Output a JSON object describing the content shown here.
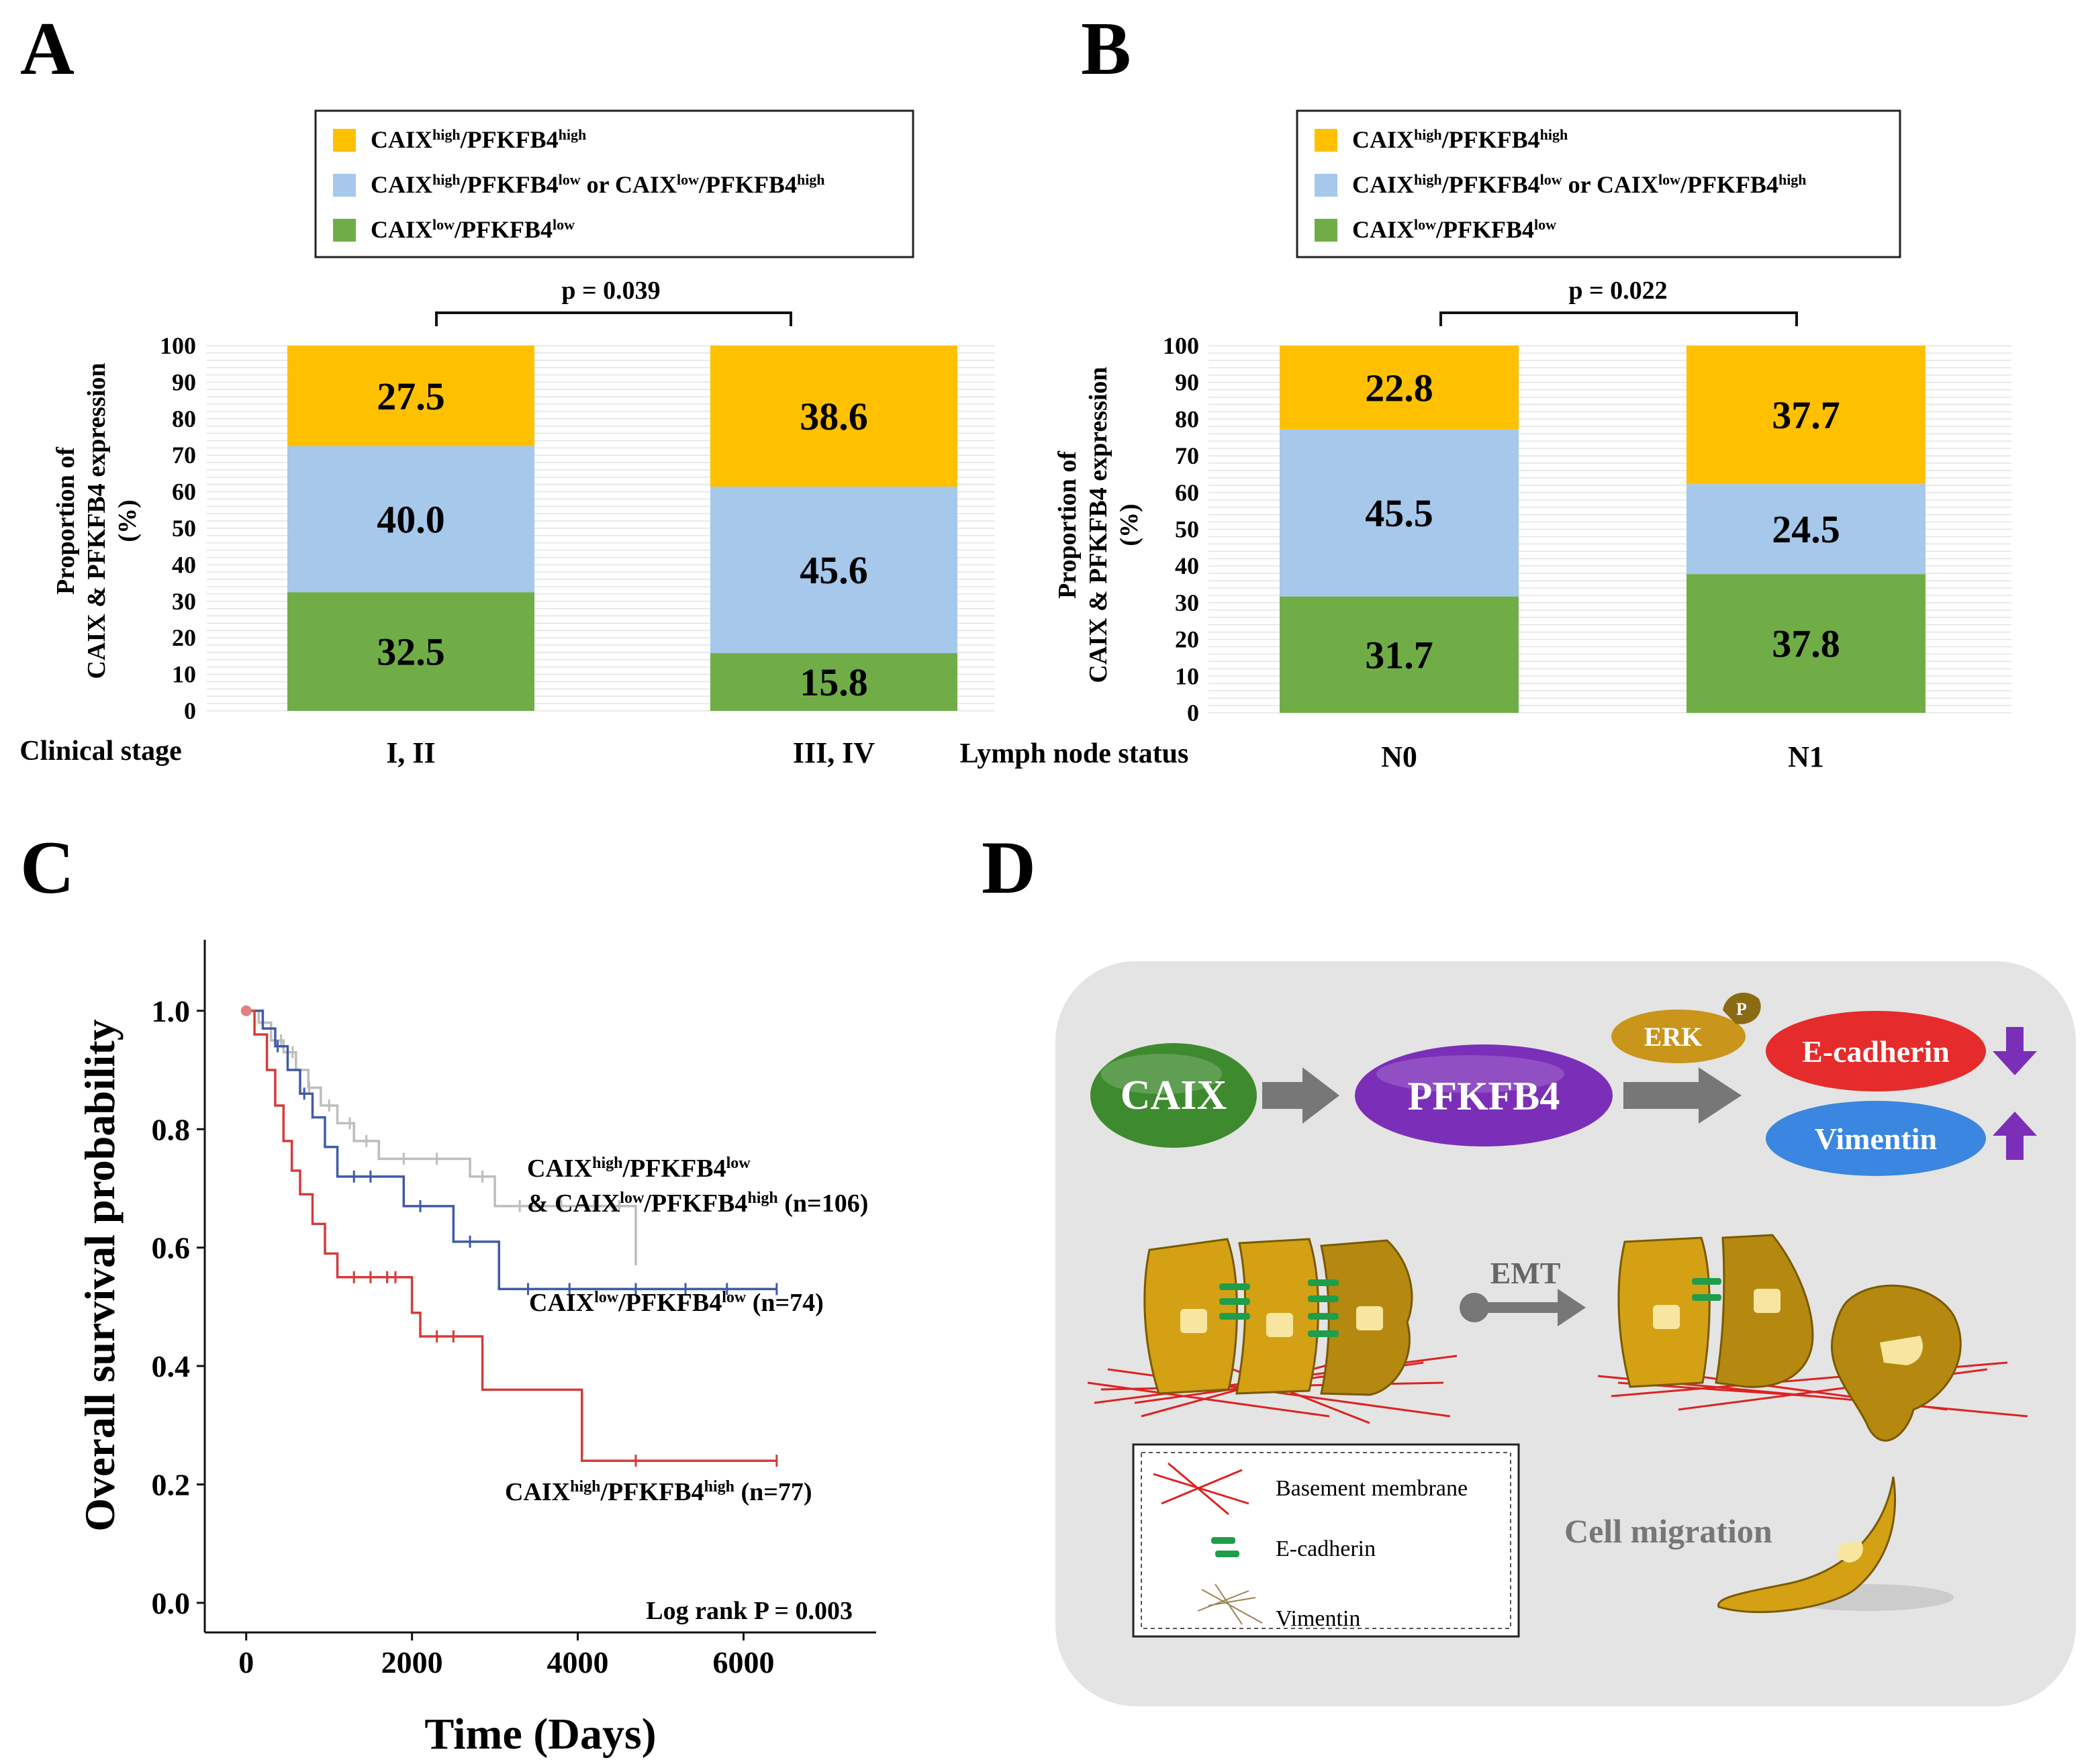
{
  "panels": {
    "A": {
      "letter": "A",
      "legend": [
        {
          "main": "CAIX",
          "s1": "high",
          "mid": "/PFKFB4",
          "s2": "high",
          "tail": "",
          "color": "#FFC000"
        },
        {
          "main": "CAIX",
          "s1": "high",
          "mid": "/PFKFB4",
          "s2": "low",
          "tail": " or CAIX",
          "s3": "low",
          "mid2": "/PFKFB4",
          "s4": "high",
          "color": "#A5C8EB"
        },
        {
          "main": "CAIX",
          "s1": "low",
          "mid": "/PFKFB4",
          "s2": "low",
          "tail": "",
          "color": "#70AD47"
        }
      ],
      "p_value": "p = 0.039",
      "ylabel_1": "Proportion of",
      "ylabel_2": "CAIX & PFKFB4 expression",
      "ylabel_3": "(%)",
      "xlabel": "Clinical stage"
    },
    "B": {
      "letter": "B",
      "p_value": "p = 0.022",
      "ylabel_1": "Proportion of",
      "ylabel_2": "CAIX & PFKFB4 expression",
      "ylabel_3": "(%)",
      "xlabel": "Lymph node status"
    },
    "C": {
      "letter": "C",
      "ylabel": "Overall survival probability",
      "xlabel": "Time (Days)",
      "logrank": "Log rank P = 0.003",
      "labels": {
        "mixed_1": "CAIXhigh/PFKFB4low",
        "mixed_2": "& CAIXlow/PFKFB4high (n=106)",
        "low": "CAIXlow/PFKFB4low (n=74)",
        "high": "CAIXhigh/PFKFB4high (n=77)"
      }
    },
    "D": {
      "letter": "D",
      "nodes": {
        "caix": "CAIX",
        "pfkfb4": "PFKFB4",
        "erk": "ERK",
        "p": "P",
        "ecad": "E-cadherin",
        "vim": "Vimentin",
        "emt": "EMT"
      },
      "legend": [
        "Basement membrane",
        "E-cadherin",
        "Vimentin"
      ],
      "migration": "Cell migration",
      "colors": {
        "caix": "#3E8A2E",
        "pfkfb4": "#7B2FB8",
        "erk": "#C9951A",
        "ecad": "#E52B2B",
        "vim": "#3A86E0",
        "arrow": "#7B2FB8"
      }
    }
  },
  "chart_data": [
    {
      "type": "bar",
      "stacked": true,
      "title": "",
      "xlabel": "Clinical stage",
      "ylabel": "Proportion of CAIX & PFKFB4 expression (%)",
      "ylim": [
        0,
        100
      ],
      "yticks": [
        0,
        10,
        20,
        30,
        40,
        50,
        60,
        70,
        80,
        90,
        100
      ],
      "categories": [
        "I, II",
        "III, IV"
      ],
      "series": [
        {
          "name": "CAIXlow/PFKFB4low",
          "values": [
            32.5,
            15.8
          ],
          "color": "#70AD47"
        },
        {
          "name": "CAIXhigh/PFKFB4low or CAIXlow/PFKFB4high",
          "values": [
            40.0,
            45.6
          ],
          "color": "#A5C8EB"
        },
        {
          "name": "CAIXhigh/PFKFB4high",
          "values": [
            27.5,
            38.6
          ],
          "color": "#FFC000"
        }
      ],
      "labels": [
        [
          "32.5",
          "15.8"
        ],
        [
          "40.0",
          "45.6"
        ],
        [
          "27.5",
          "38.6"
        ]
      ]
    },
    {
      "type": "bar",
      "stacked": true,
      "title": "",
      "xlabel": "Lymph node status",
      "ylabel": "Proportion of CAIX & PFKFB4 expression (%)",
      "ylim": [
        0,
        100
      ],
      "yticks": [
        0,
        10,
        20,
        30,
        40,
        50,
        60,
        70,
        80,
        90,
        100
      ],
      "categories": [
        "N0",
        "N1"
      ],
      "series": [
        {
          "name": "CAIXlow/PFKFB4low",
          "values": [
            31.7,
            37.8
          ],
          "color": "#70AD47"
        },
        {
          "name": "CAIXhigh/PFKFB4low or CAIXlow/PFKFB4high",
          "values": [
            45.5,
            24.5
          ],
          "color": "#A5C8EB"
        },
        {
          "name": "CAIXhigh/PFKFB4high",
          "values": [
            22.8,
            37.7
          ],
          "color": "#FFC000"
        }
      ],
      "labels": [
        [
          "31.7",
          "37.8"
        ],
        [
          "45.5",
          "24.5"
        ],
        [
          "22.8",
          "37.7"
        ]
      ]
    },
    {
      "type": "line",
      "step": true,
      "title": "",
      "xlabel": "Time (Days)",
      "ylabel": "Overall survival probability",
      "xlim": [
        -500,
        7600
      ],
      "ylim": [
        -0.05,
        1.12
      ],
      "xticks": [
        0,
        2000,
        4000,
        6000
      ],
      "yticks": [
        0.0,
        0.2,
        0.4,
        0.6,
        0.8,
        1.0
      ],
      "series": [
        {
          "name": "CAIXhigh/PFKFB4low & CAIXlow/PFKFB4high (n=106)",
          "color": "#BDBDBD",
          "x": [
            0,
            150,
            300,
            450,
            600,
            750,
            900,
            1100,
            1300,
            1600,
            2000,
            2400,
            2700,
            3000,
            4700
          ],
          "y": [
            1.0,
            0.98,
            0.95,
            0.93,
            0.9,
            0.87,
            0.84,
            0.81,
            0.78,
            0.75,
            0.75,
            0.75,
            0.72,
            0.67,
            0.57
          ],
          "censor_x": [
            420,
            560,
            760,
            1000,
            1250,
            1450,
            1900,
            2300,
            2850,
            3300,
            3800,
            4200,
            4500
          ]
        },
        {
          "name": "CAIXlow/PFKFB4low (n=74)",
          "color": "#3F5AA8",
          "x": [
            0,
            200,
            350,
            500,
            650,
            800,
            950,
            1100,
            1900,
            2500,
            3050,
            6400
          ],
          "y": [
            1.0,
            0.97,
            0.94,
            0.9,
            0.86,
            0.82,
            0.77,
            0.72,
            0.67,
            0.61,
            0.53,
            0.53
          ],
          "censor_x": [
            380,
            700,
            1300,
            1500,
            2100,
            2700,
            3400,
            3900,
            4700,
            5300,
            5800,
            6400
          ]
        },
        {
          "name": "CAIXhigh/PFKFB4high (n=77)",
          "color": "#D63A3A",
          "x": [
            0,
            100,
            250,
            350,
            450,
            550,
            650,
            800,
            950,
            1100,
            1250,
            2000,
            2100,
            2850,
            4050,
            6400
          ],
          "y": [
            1.0,
            0.96,
            0.9,
            0.84,
            0.78,
            0.73,
            0.69,
            0.64,
            0.59,
            0.55,
            0.55,
            0.49,
            0.45,
            0.36,
            0.24,
            0.24
          ],
          "censor_x": [
            1300,
            1500,
            1700,
            1800,
            2300,
            2500,
            4700,
            6400
          ]
        }
      ]
    }
  ]
}
